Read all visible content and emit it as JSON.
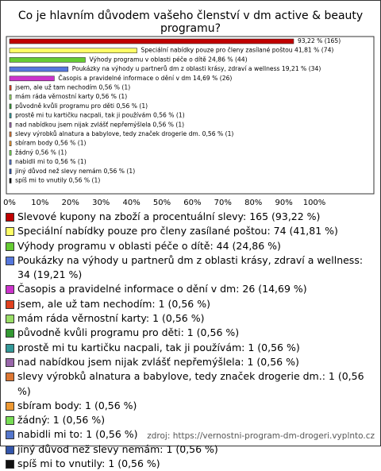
{
  "chart_data": {
    "type": "bar",
    "orientation": "horizontal",
    "title": "Co je hlavním důvodem vašeho členství v dm active & beauty programu?",
    "categories": [
      "Slevové kupony na zboží a procentuální slevy",
      "Speciální nabídky pouze pro členy zasílané poštou",
      "Výhody programu v oblasti péče o dítě",
      "Poukázky na výhody u partnerů dm z oblasti krásy, zdraví a wellness",
      "Časopis a pravidelné informace o dění v dm",
      "jsem, ale už tam nechodím",
      "mám ráda věrnostní karty",
      "původně kvůli programu pro děti",
      "prostě mi tu kartičku nacpali, tak ji používám",
      "nad nabídkou jsem nijak zvlášť nepřemýšlela",
      "slevy výrobků alnatura a babylove, tedy značek drogerie dm.",
      "sbíram body",
      "žádný",
      "nabidli mi to",
      "jiný důvod než slevy nemám",
      "spíš mi to vnutily"
    ],
    "values": [
      93.22,
      41.81,
      24.86,
      19.21,
      14.69,
      0.56,
      0.56,
      0.56,
      0.56,
      0.56,
      0.56,
      0.56,
      0.56,
      0.56,
      0.56,
      0.56
    ],
    "value_labels": [
      "93,22 % (165)",
      "Speciální nabídky pouze pro členy zasílané poštou 41,81 % (74)",
      "Výhody programu v oblasti péče o dítě 24,86 % (44)",
      "Poukázky na výhody u partnerů dm z oblasti krásy, zdraví a wellness 19,21 % (34)",
      "Časopis a pravidelné informace o dění v dm 14,69 % (26)",
      "jsem, ale už tam nechodím 0,56 % (1)",
      "mám ráda věrnostní karty 0,56 % (1)",
      "původně kvůli programu pro děti 0,56 % (1)",
      "prostě mi tu kartičku nacpali, tak ji používám 0,56 % (1)",
      "nad nabídkou jsem nijak zvlášť nepřemýšlela 0,56 % (1)",
      "slevy výrobků alnatura a babylove, tedy značek drogerie dm. 0,56 % (1)",
      "sbíram body 0,56 % (1)",
      "žádný 0,56 % (1)",
      "nabidli mi to 0,56 % (1)",
      "jiný důvod než slevy nemám 0,56 % (1)",
      "spíš mi to vnutily 0,56 % (1)"
    ],
    "legend_labels": [
      "Slevové kupony na zboží a procentuální slevy: 165 (93,22 %)",
      "Speciální nabídky pouze pro členy zasílané poštou: 74 (41,81 %)",
      "Výhody programu v oblasti péče o dítě: 44 (24,86 %)",
      "Poukázky na výhody u partnerů dm z oblasti krásy, zdraví a wellness: 34 (19,21 %)",
      "Časopis a pravidelné informace o dění v dm: 26 (14,69 %)",
      "jsem, ale už tam nechodím: 1 (0,56 %)",
      "mám ráda věrnostní karty: 1 (0,56 %)",
      "původně kvůli programu pro děti: 1 (0,56 %)",
      "prostě mi tu kartičku nacpali, tak ji používám: 1 (0,56 %)",
      "nad nabídkou jsem nijak zvlášť nepřemýšlela: 1 (0,56 %)",
      "slevy výrobků alnatura a babylove, tedy značek drogerie dm.: 1 (0,56 %)",
      "sbíram body: 1 (0,56 %)",
      "žádný: 1 (0,56 %)",
      "nabidli mi to: 1 (0,56 %)",
      "jiný důvod než slevy nemám: 1 (0,56 %)",
      "spíš mi to vnutily: 1 (0,56 %)"
    ],
    "colors": [
      "#c00000",
      "#ffff66",
      "#66cc33",
      "#5577dd",
      "#cc33cc",
      "#e0401e",
      "#99dd66",
      "#339933",
      "#339999",
      "#9966aa",
      "#dd7733",
      "#ee9933",
      "#77dd55",
      "#5577cc",
      "#3355aa",
      "#111111"
    ],
    "xlim": [
      0,
      100
    ],
    "xticks": [
      {
        "value": 0,
        "label": "0%"
      },
      {
        "value": 10,
        "label": "10%"
      },
      {
        "value": 20,
        "label": "20%"
      },
      {
        "value": 30,
        "label": "30%"
      },
      {
        "value": 40,
        "label": "40%"
      },
      {
        "value": 50,
        "label": "50%"
      },
      {
        "value": 60,
        "label": "60%"
      },
      {
        "value": 70,
        "label": "70%"
      },
      {
        "value": 80,
        "label": "80%"
      },
      {
        "value": 90,
        "label": "90%"
      },
      {
        "value": 100,
        "label": "100%"
      }
    ],
    "grid": false,
    "source": "zdroj: https://vernostni-program-dm-drogeri.vyplnto.cz"
  }
}
